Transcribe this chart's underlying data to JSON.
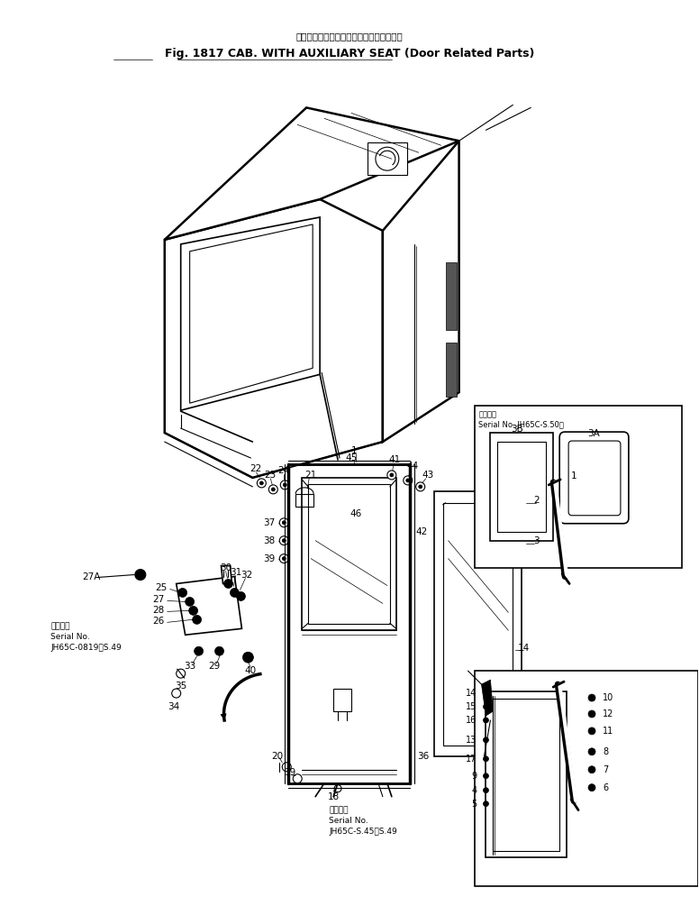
{
  "bg": "#ffffff",
  "lc": "#000000",
  "figsize": [
    7.76,
    10.15
  ],
  "dpi": 100,
  "title_jp": "キャブ、補　助　席　付（ドア関連部品）",
  "title_en": "Fig. 1817 CAB. WITH AUXILIARY SEAT (Door Related Parts)",
  "serial_left_jp": "適用号機",
  "serial_left_1": "Serial No.",
  "serial_left_2": "JH65C-0819～S.49",
  "serial_bottom_jp": "適用号機",
  "serial_bottom_1": "Serial No.",
  "serial_bottom_2": "JH65C-S.45～S.49",
  "serial_tr_jp": "適用号機",
  "serial_tr_en": "Serial No. JH65C-S.50～"
}
